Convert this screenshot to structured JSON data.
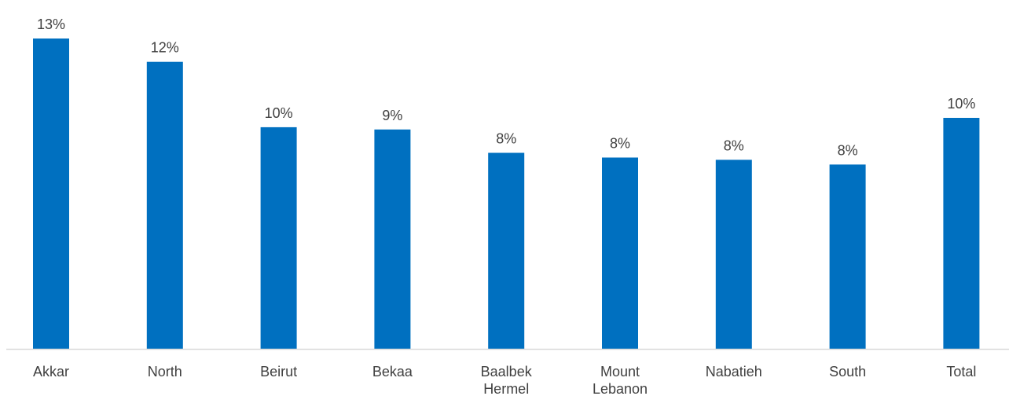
{
  "chart_data": {
    "type": "bar",
    "categories": [
      [
        "Akkar"
      ],
      [
        "North"
      ],
      [
        "Beirut"
      ],
      [
        "Bekaa"
      ],
      [
        "Baalbek",
        "Hermel"
      ],
      [
        "Mount",
        "Lebanon"
      ],
      [
        "Nabatieh"
      ],
      [
        "South"
      ],
      [
        "Total"
      ]
    ],
    "values": [
      13.3,
      12.3,
      9.5,
      9.4,
      8.4,
      8.2,
      8.1,
      7.9,
      9.9
    ],
    "data_labels": [
      "13%",
      "12%",
      "10%",
      "9%",
      "8%",
      "8%",
      "8%",
      "8%",
      "10%"
    ],
    "title": "",
    "xlabel": "",
    "ylabel": "",
    "ylim": [
      0,
      13.3
    ],
    "grid": false,
    "legend": "none",
    "bar_color": "#0070C0",
    "axis_color": "#D9D9D9",
    "text_color": "#404040"
  }
}
